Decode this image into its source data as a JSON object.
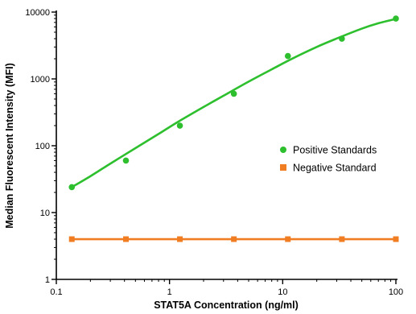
{
  "chart_data": {
    "type": "line",
    "title": "",
    "xlabel": "STAT5A Concentration (ng/ml)",
    "ylabel": "Median Fluorescent Intensity (MFI)",
    "xscale": "log",
    "yscale": "log",
    "xlim": [
      0.1,
      100
    ],
    "ylim": [
      1,
      10000
    ],
    "xticks": [
      0.1,
      1,
      10,
      100
    ],
    "xtick_labels": [
      "0.1",
      "1",
      "10",
      "100"
    ],
    "yticks": [
      1,
      10,
      100,
      1000,
      10000
    ],
    "ytick_labels": [
      "1",
      "10",
      "100",
      "1000",
      "10000"
    ],
    "grid": false,
    "legend_position": "right",
    "series": [
      {
        "name": "Positive Standards",
        "color": "#2dbf2d",
        "marker": "circle",
        "fit_curve": true,
        "x": [
          0.137,
          0.412,
          1.235,
          3.704,
          11.11,
          33.33,
          100
        ],
        "y": [
          24,
          60,
          200,
          600,
          2200,
          4000,
          8000
        ],
        "curve_x": [
          0.137,
          0.2,
          0.3,
          0.5,
          0.8,
          1.2,
          2,
          3,
          5,
          8,
          12,
          20,
          30,
          50,
          70,
          100
        ],
        "curve_y": [
          24,
          35,
          54,
          92,
          150,
          230,
          380,
          560,
          910,
          1390,
          1990,
          3010,
          4020,
          5650,
          6800,
          7900
        ]
      },
      {
        "name": "Negative Standard",
        "color": "#f07d22",
        "marker": "square",
        "fit_curve": false,
        "x": [
          0.137,
          0.412,
          1.235,
          3.704,
          11.11,
          33.33,
          100
        ],
        "y": [
          4,
          4,
          4,
          4,
          4,
          4,
          4
        ]
      }
    ]
  }
}
